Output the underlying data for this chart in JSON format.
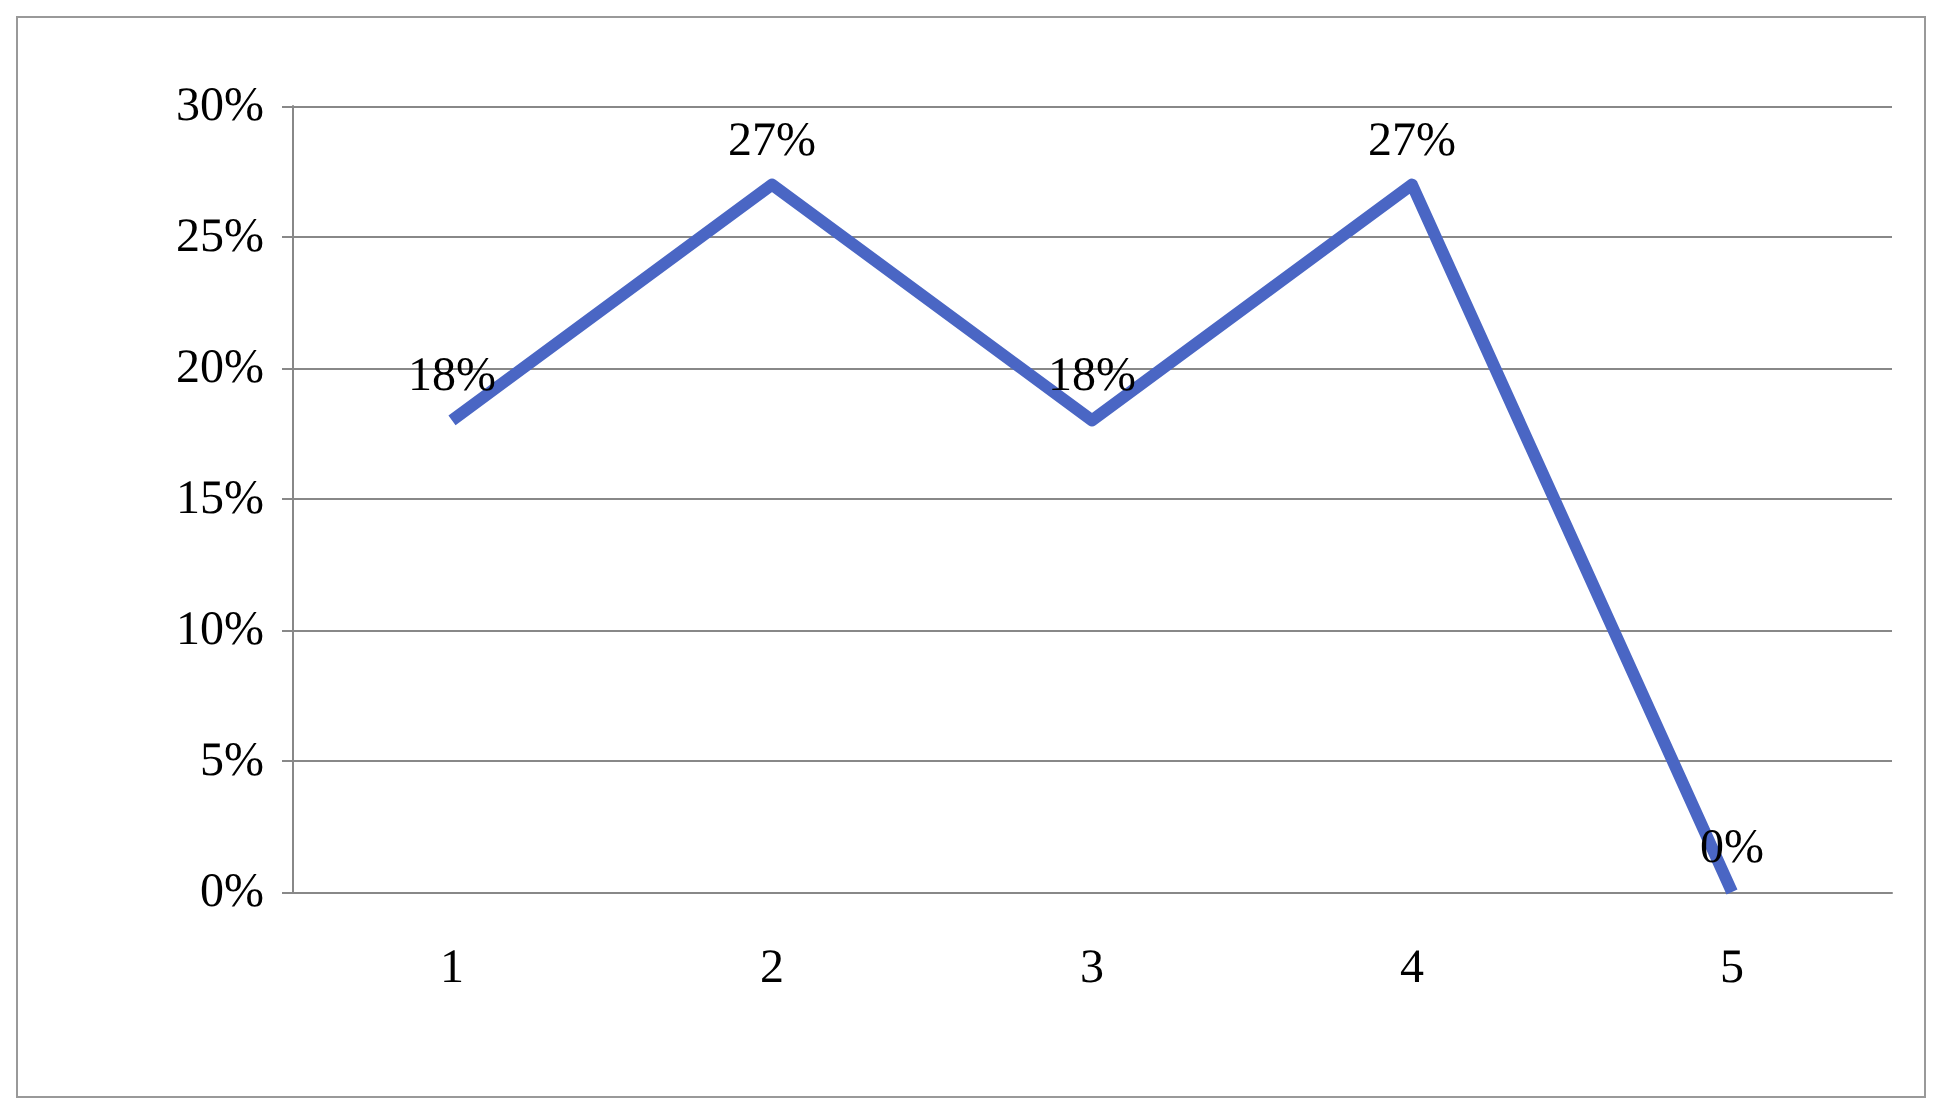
{
  "chart_data": {
    "type": "line",
    "categories": [
      "1",
      "2",
      "3",
      "4",
      "5"
    ],
    "series": [
      {
        "color": "#4a66c4",
        "values": [
          18,
          27,
          18,
          27,
          0
        ],
        "value_labels": [
          "18%",
          "27%",
          "18%",
          "27%",
          "0%"
        ]
      }
    ],
    "ylim": [
      0,
      30
    ],
    "yticks": [
      {
        "value": 0,
        "label": "0%"
      },
      {
        "value": 5,
        "label": "5%"
      },
      {
        "value": 10,
        "label": "10%"
      },
      {
        "value": 15,
        "label": "15%"
      },
      {
        "value": 20,
        "label": "20%"
      },
      {
        "value": 25,
        "label": "25%"
      },
      {
        "value": 30,
        "label": "30%"
      }
    ],
    "grid": "y",
    "marker": "none",
    "line_style": "solid"
  }
}
